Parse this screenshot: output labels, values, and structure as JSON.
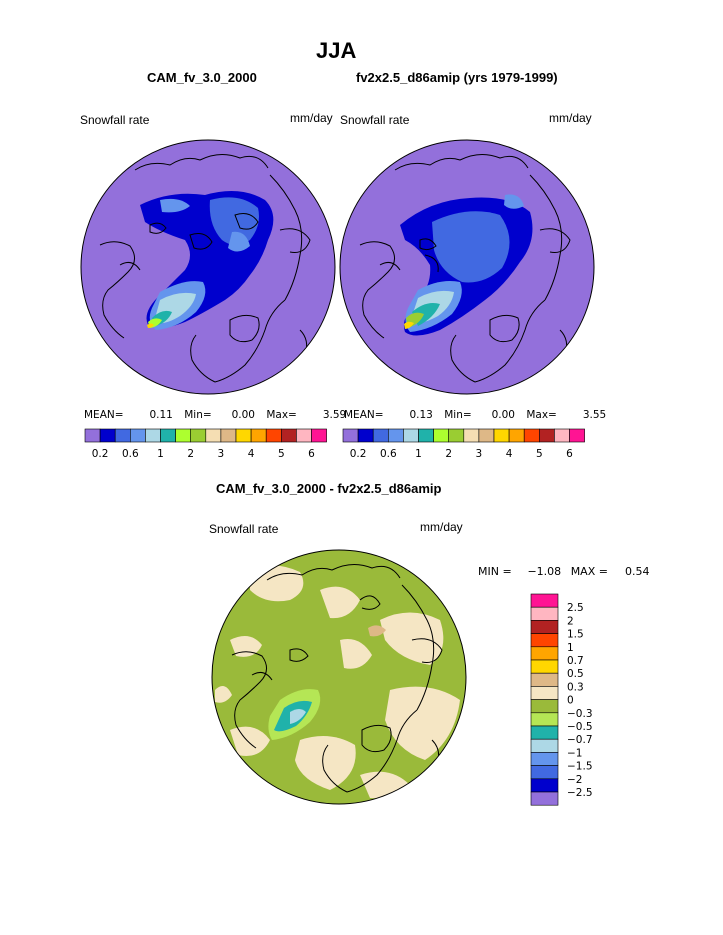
{
  "page": {
    "title": "JJA",
    "model_case": "CAM_fv_3.0_2000",
    "control_case": "fv2x2.5_d86amip (yrs 1979-1999)",
    "diff_title": "CAM_fv_3.0_2000 - fv2x2.5_d86amip"
  },
  "panels": [
    {
      "variable": "Snowfall rate",
      "units": "mm/day",
      "stats": {
        "mean_label": "MEAN=",
        "mean": "0.11",
        "min_label": "Min=",
        "min": "0.00",
        "max_label": "Max=",
        "max": "3.59"
      }
    },
    {
      "variable": "Snowfall rate",
      "units": "mm/day",
      "stats": {
        "mean_label": "MEAN=",
        "mean": "0.13",
        "min_label": "Min=",
        "min": "0.00",
        "max_label": "Max=",
        "max": "3.55"
      }
    }
  ],
  "top_colorbar": {
    "colors": [
      "#9370db",
      "#0000cd",
      "#4169e1",
      "#6495ed",
      "#add8e6",
      "#20b2aa",
      "#adff2f",
      "#9acd32",
      "#f5deb3",
      "#deb887",
      "#ffd700",
      "#ffa500",
      "#ff4500",
      "#b22222",
      "#ffb6c1",
      "#ff1493"
    ],
    "labels": [
      "0.2",
      "0.6",
      "1",
      "2",
      "3",
      "4",
      "5",
      "6"
    ]
  },
  "diff_panel": {
    "variable": "Snowfall rate",
    "units": "mm/day",
    "min_label": "MIN =",
    "min": "−1.08",
    "max_label": "MAX =",
    "max": "0.54"
  },
  "diff_colorbar": {
    "colors": [
      "#ff1493",
      "#ffb6c1",
      "#b22222",
      "#ff4500",
      "#ffa500",
      "#ffd700",
      "#deb887",
      "#f5e6c4",
      "#9aba3a",
      "#b5e655",
      "#20b2aa",
      "#add8e6",
      "#6495ed",
      "#4169e1",
      "#0000cd",
      "#9370db"
    ],
    "labels": [
      "2.5",
      "2",
      "1.5",
      "1",
      "0.7",
      "0.5",
      "0.3",
      "0",
      "−0.3",
      "−0.5",
      "−0.7",
      "−1",
      "−1.5",
      "−2",
      "−2.5"
    ]
  }
}
